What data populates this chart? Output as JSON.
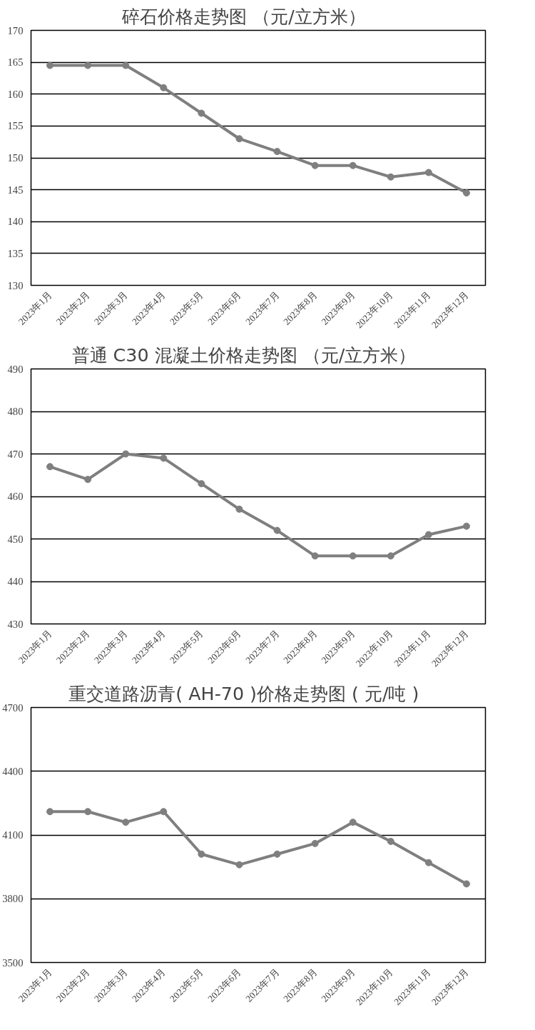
{
  "chart_data": [
    {
      "type": "line",
      "title": "碎石价格走势图      （元/立方米）",
      "categories": [
        "2023年1月",
        "2023年2月",
        "2023年3月",
        "2023年4月",
        "2023年5月",
        "2023年6月",
        "2023年7月",
        "2023年8月",
        "2023年9月",
        "2023年10月",
        "2023年11月",
        "2023年12月"
      ],
      "series": [
        {
          "color": "#7f7f7f",
          "values": [
            164.5,
            164.5,
            164.5,
            161,
            157,
            153,
            151,
            148.8,
            148.8,
            147,
            147.7,
            144.5
          ]
        }
      ],
      "ylim": [
        130,
        170
      ],
      "yticks": [
        130,
        135,
        140,
        145,
        150,
        155,
        160,
        165,
        170
      ],
      "grid": "y",
      "marker": "circle"
    },
    {
      "type": "line",
      "title": "普通 C30 混凝土价格走势图      （元/立方米）",
      "categories": [
        "2023年1月",
        "2023年2月",
        "2023年3月",
        "2023年4月",
        "2023年5月",
        "2023年6月",
        "2023年7月",
        "2023年8月",
        "2023年9月",
        "2023年10月",
        "2023年11月",
        "2023年12月"
      ],
      "series": [
        {
          "color": "#7f7f7f",
          "values": [
            467,
            464,
            470,
            469,
            463,
            457,
            452,
            446,
            446,
            446,
            451,
            453
          ]
        }
      ],
      "ylim": [
        430,
        490
      ],
      "yticks": [
        430,
        440,
        450,
        460,
        470,
        480,
        490
      ],
      "grid": "y",
      "marker": "circle"
    },
    {
      "type": "line",
      "title": "重交道路沥青( AH-70 )价格走势图      ( 元/吨 )",
      "categories": [
        "2023年1月",
        "2023年2月",
        "2023年3月",
        "2023年4月",
        "2023年5月",
        "2023年6月",
        "2023年7月",
        "2023年8月",
        "2023年9月",
        "2023年10月",
        "2023年11月",
        "2023年12月"
      ],
      "series": [
        {
          "color": "#7f7f7f",
          "values": [
            4210,
            4210,
            4160,
            4210,
            4010,
            3960,
            4010,
            4060,
            4160,
            4070,
            3970,
            3870
          ]
        }
      ],
      "ylim": [
        3500,
        4700
      ],
      "yticks": [
        3500,
        3800,
        4100,
        4400,
        4700
      ],
      "grid": "y",
      "marker": "circle"
    }
  ]
}
